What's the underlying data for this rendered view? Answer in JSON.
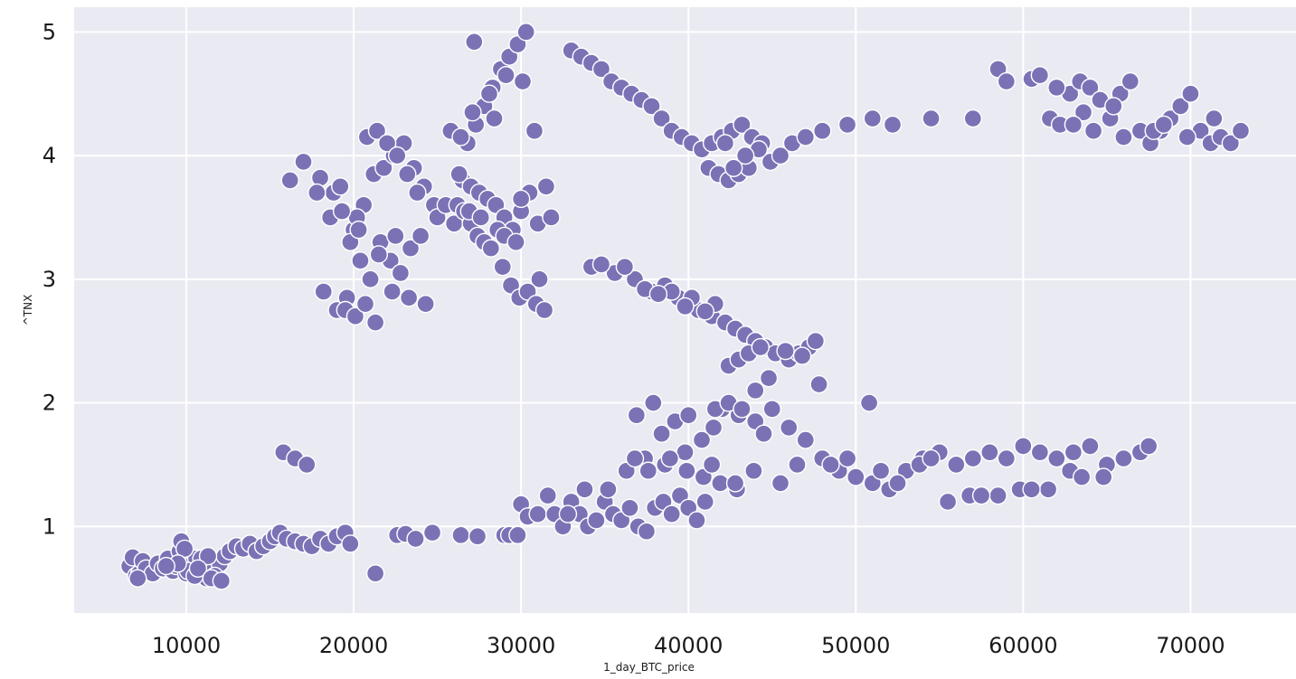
{
  "chart_data": {
    "type": "scatter",
    "title": "",
    "xlabel": "1_day_BTC_price",
    "ylabel": "^TNX",
    "xlim": [
      3300,
      76300
    ],
    "ylim": [
      0.3,
      5.2
    ],
    "x_ticks": [
      10000,
      20000,
      30000,
      40000,
      50000,
      60000,
      70000
    ],
    "x_tick_labels": [
      "10000",
      "20000",
      "30000",
      "40000",
      "50000",
      "60000",
      "70000"
    ],
    "y_ticks": [
      1,
      2,
      3,
      4,
      5
    ],
    "y_tick_labels": [
      "1",
      "2",
      "3",
      "4",
      "5"
    ],
    "grid": true,
    "colors": {
      "plot_background": "#eaeaf2",
      "grid": "#ffffff",
      "marker": "#7b72b6",
      "marker_edge": "#ffffff"
    },
    "series": [
      {
        "name": "",
        "x": [
          6600,
          6800,
          7000,
          7200,
          7400,
          7600,
          8000,
          8300,
          8600,
          8900,
          9200,
          9400,
          9600,
          9800,
          10000,
          10200,
          10400,
          10600,
          10800,
          11000,
          11200,
          11400,
          11600,
          11800,
          12000,
          12300,
          12600,
          13000,
          13400,
          13800,
          14200,
          14600,
          15000,
          15300,
          15600,
          16000,
          16500,
          17000,
          17500,
          18000,
          18500,
          19000,
          19500,
          19800,
          9700,
          9900,
          10100,
          10500,
          10900,
          11300,
          11700,
          7100,
          9500,
          10700,
          11500,
          12100,
          8800,
          21300,
          22600,
          23100,
          23700,
          24700,
          26400,
          27400,
          29000,
          29300,
          29800,
          30000,
          30400,
          31000,
          31600,
          32000,
          32500,
          33000,
          33500,
          34000,
          34500,
          35000,
          35500,
          36000,
          36500,
          37000,
          37500,
          38000,
          38500,
          39000,
          39500,
          40000,
          40500,
          41000,
          32800,
          33800,
          35200,
          36300,
          37400,
          38600,
          39800,
          40800,
          41500,
          42000,
          43000,
          44000,
          45000,
          46000,
          47000,
          48000,
          49000,
          50000,
          51000,
          52000,
          53000,
          54000,
          55000,
          56000,
          57000,
          58000,
          59000,
          60000,
          61000,
          62000,
          63000,
          64000,
          65000,
          66000,
          67000,
          67500,
          36800,
          37600,
          38400,
          39200,
          40000,
          40800,
          41600,
          42400,
          43200,
          44000,
          44500,
          36900,
          37900,
          38900,
          39900,
          40900,
          41900,
          42900,
          43900,
          41400,
          42800,
          44800,
          47800,
          50800,
          53800,
          56800,
          59800,
          62800,
          64800,
          46500,
          49500,
          52500,
          55500,
          58500,
          61500,
          45500,
          48500,
          51500,
          54500,
          57500,
          60500,
          63500,
          15800,
          16500,
          17200,
          18000,
          18800,
          19400,
          20000,
          20600,
          21200,
          21800,
          22400,
          23000,
          23600,
          24200,
          24800,
          16200,
          17000,
          17800,
          18600,
          19200,
          19800,
          20400,
          21000,
          21600,
          22200,
          22800,
          23400,
          24000,
          18200,
          19000,
          19600,
          20200,
          20800,
          21400,
          22000,
          22600,
          23200,
          23800,
          19300,
          20300,
          21300,
          22300,
          23300,
          24300,
          19500,
          20100,
          20700,
          21500,
          22500,
          25000,
          25500,
          26000,
          26500,
          27000,
          27500,
          28000,
          28500,
          29000,
          29500,
          30000,
          30500,
          31000,
          31500,
          26300,
          26800,
          27300,
          27800,
          28300,
          28800,
          29300,
          29800,
          30300,
          30800,
          27100,
          28100,
          29100,
          30100,
          31100,
          28900,
          29400,
          29900,
          30400,
          30900,
          31400,
          31800,
          26200,
          26600,
          27000,
          27400,
          27800,
          28200,
          28600,
          29000,
          29700,
          30000,
          26900,
          27600,
          28400,
          25800,
          26400,
          27200,
          33000,
          33600,
          34200,
          34800,
          35400,
          36000,
          36600,
          37200,
          37800,
          38400,
          39000,
          39600,
          40200,
          40800,
          41400,
          42000,
          42600,
          43200,
          43800,
          44400,
          44900,
          41200,
          41800,
          42400,
          43000,
          43600,
          44200,
          42200,
          43400,
          42700,
          45500,
          46200,
          47000,
          48000,
          49500,
          51000,
          52200,
          54500,
          57000,
          58500,
          59000,
          60500,
          61000,
          61600,
          62200,
          62800,
          63400,
          64000,
          64600,
          65200,
          65800,
          66400,
          67000,
          67600,
          68200,
          68800,
          69400,
          70000,
          70600,
          71200,
          71800,
          72400,
          73000,
          62000,
          63600,
          65400,
          67800,
          69800,
          71400,
          63000,
          64200,
          66000,
          68400,
          34200,
          35600,
          36800,
          37800,
          38600,
          39400,
          40000,
          40600,
          41400,
          42200,
          42800,
          43400,
          44000,
          44600,
          45200,
          46000,
          46600,
          47200,
          39000,
          40200,
          41600,
          34800,
          36200,
          37400,
          38200,
          39800,
          41000,
          42400,
          43000,
          43600,
          44300,
          45800,
          46800,
          47600
        ],
        "y": [
          0.68,
          0.75,
          0.6,
          0.62,
          0.72,
          0.66,
          0.62,
          0.7,
          0.66,
          0.74,
          0.64,
          0.68,
          0.8,
          0.72,
          0.62,
          0.65,
          0.7,
          0.74,
          0.66,
          0.62,
          0.58,
          0.72,
          0.68,
          0.6,
          0.7,
          0.76,
          0.8,
          0.84,
          0.82,
          0.86,
          0.8,
          0.84,
          0.88,
          0.92,
          0.95,
          0.9,
          0.88,
          0.86,
          0.84,
          0.9,
          0.86,
          0.92,
          0.95,
          0.86,
          0.88,
          0.82,
          0.64,
          0.6,
          0.74,
          0.76,
          0.6,
          0.58,
          0.7,
          0.66,
          0.58,
          0.56,
          0.68,
          0.62,
          0.93,
          0.94,
          0.9,
          0.95,
          0.93,
          0.92,
          0.93,
          0.93,
          0.93,
          1.18,
          1.08,
          1.1,
          1.25,
          1.1,
          1.0,
          1.2,
          1.1,
          1.0,
          1.05,
          1.2,
          1.1,
          1.05,
          1.15,
          1.0,
          0.96,
          1.15,
          1.2,
          1.1,
          1.25,
          1.15,
          1.05,
          1.2,
          1.1,
          1.3,
          1.3,
          1.45,
          1.55,
          1.5,
          1.6,
          1.7,
          1.8,
          1.95,
          1.9,
          2.1,
          1.95,
          1.8,
          1.7,
          1.55,
          1.45,
          1.4,
          1.35,
          1.3,
          1.45,
          1.55,
          1.6,
          1.5,
          1.55,
          1.6,
          1.55,
          1.65,
          1.6,
          1.55,
          1.6,
          1.65,
          1.5,
          1.55,
          1.6,
          1.65,
          1.55,
          1.45,
          1.75,
          1.85,
          1.9,
          1.7,
          1.95,
          2.0,
          1.95,
          1.85,
          1.75,
          1.9,
          2.0,
          1.55,
          1.45,
          1.4,
          1.35,
          1.3,
          1.45,
          1.5,
          1.35,
          2.2,
          2.15,
          2.0,
          1.5,
          1.25,
          1.3,
          1.45,
          1.4,
          1.5,
          1.55,
          1.35,
          1.2,
          1.25,
          1.3,
          1.35,
          1.5,
          1.45,
          1.55,
          1.25,
          1.3,
          1.4,
          1.6,
          1.55,
          1.5,
          3.82,
          3.7,
          3.55,
          3.4,
          3.6,
          3.85,
          3.9,
          4.0,
          4.1,
          3.9,
          3.75,
          3.6,
          3.8,
          3.95,
          3.7,
          3.5,
          3.75,
          3.3,
          3.15,
          3.0,
          3.3,
          3.15,
          3.05,
          3.25,
          3.35,
          2.9,
          2.75,
          2.85,
          3.5,
          4.15,
          4.2,
          4.1,
          4.0,
          3.85,
          3.7,
          3.55,
          3.4,
          2.65,
          2.9,
          2.85,
          2.8,
          2.75,
          2.7,
          2.8,
          3.2,
          3.35,
          3.5,
          3.6,
          3.45,
          3.8,
          3.75,
          3.7,
          3.65,
          3.6,
          3.5,
          3.4,
          3.55,
          3.7,
          3.45,
          3.75,
          3.85,
          4.1,
          4.25,
          4.4,
          4.55,
          4.7,
          4.8,
          4.9,
          5.0,
          4.2,
          4.35,
          4.5,
          4.65,
          4.6,
          3.0,
          3.1,
          2.95,
          2.85,
          2.9,
          2.8,
          2.75,
          3.5,
          3.6,
          3.55,
          3.45,
          3.35,
          3.3,
          3.25,
          3.4,
          3.35,
          3.3,
          3.65,
          3.55,
          3.5,
          4.3,
          4.2,
          4.15,
          4.92,
          4.85,
          4.8,
          4.75,
          4.7,
          4.6,
          4.55,
          4.5,
          4.45,
          4.4,
          4.3,
          4.2,
          4.15,
          4.1,
          4.05,
          4.1,
          4.15,
          4.2,
          4.25,
          4.15,
          4.1,
          3.95,
          3.9,
          3.85,
          3.8,
          3.85,
          3.9,
          4.05,
          4.1,
          4.0,
          3.9,
          4.0,
          4.1,
          4.15,
          4.2,
          4.25,
          4.3,
          4.25,
          4.3,
          4.3,
          4.7,
          4.6,
          4.62,
          4.65,
          4.3,
          4.25,
          4.5,
          4.6,
          4.55,
          4.45,
          4.3,
          4.5,
          4.6,
          4.2,
          4.1,
          4.2,
          4.3,
          4.4,
          4.5,
          4.2,
          4.1,
          4.15,
          4.1,
          4.2,
          4.55,
          4.35,
          4.4,
          4.2,
          4.15,
          4.3,
          4.25,
          4.2,
          4.15,
          4.25,
          3.1,
          3.05,
          3.0,
          2.9,
          2.95,
          2.85,
          2.8,
          2.75,
          2.7,
          2.65,
          2.6,
          2.55,
          2.5,
          2.45,
          2.4,
          2.35,
          2.4,
          2.45,
          2.9,
          2.85,
          2.8,
          3.12,
          3.1,
          2.92,
          2.88,
          2.78,
          2.74,
          2.3,
          2.35,
          2.4,
          2.45,
          2.42,
          2.38,
          2.5
        ]
      }
    ]
  }
}
